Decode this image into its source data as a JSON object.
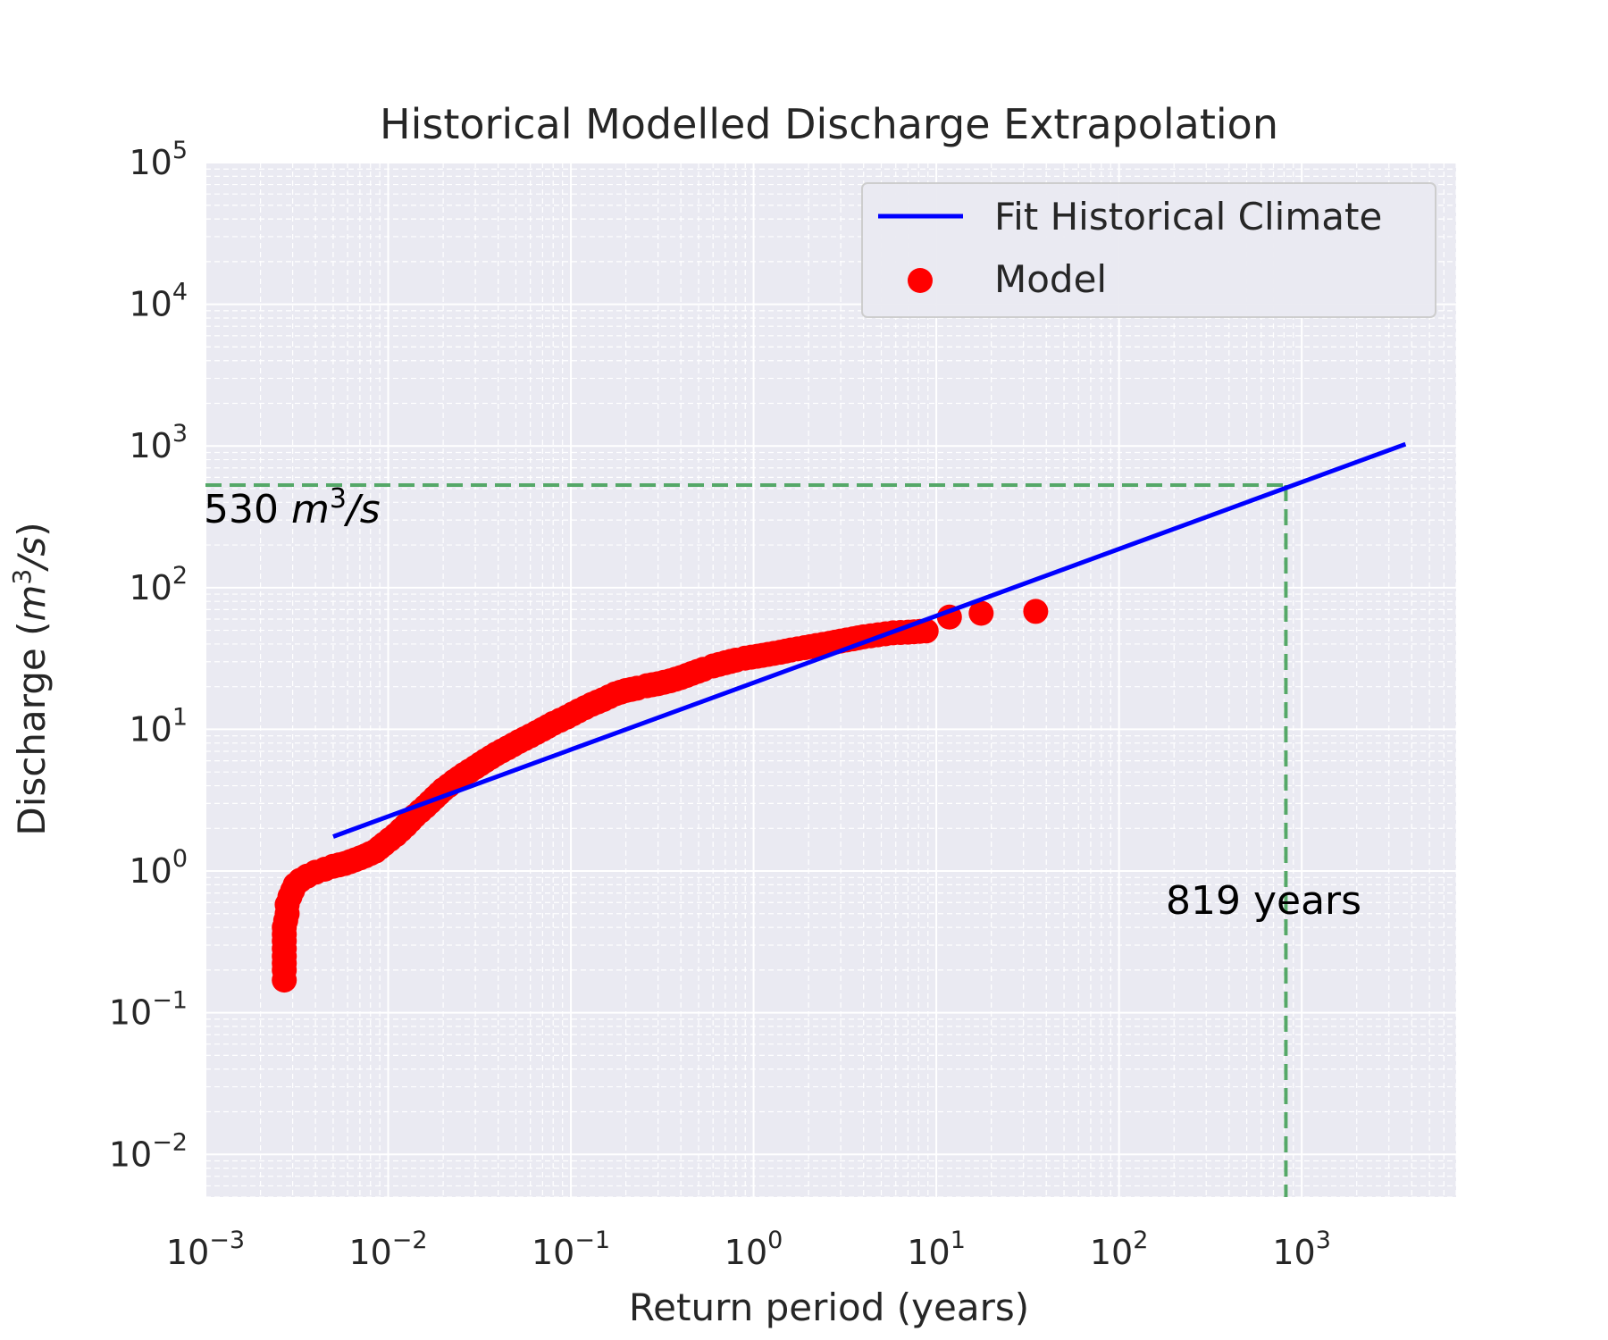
{
  "chart_data": {
    "type": "scatter",
    "title": "Historical Modelled Discharge Extrapolation",
    "xlabel": "Return period (years)",
    "ylabel_main": "Discharge (",
    "ylabel_m": "m",
    "ylabel_sup": "3",
    "ylabel_s": "/s",
    "ylabel_close": ")",
    "xscale": "log",
    "yscale": "log",
    "xlim": [
      0.001,
      7000
    ],
    "ylim": [
      0.005,
      100000
    ],
    "grid": true,
    "legend_position": "top-right",
    "x_ticks": [
      {
        "base": "10",
        "exp": "−3",
        "value": 0.001
      },
      {
        "base": "10",
        "exp": "−2",
        "value": 0.01
      },
      {
        "base": "10",
        "exp": "−1",
        "value": 0.1
      },
      {
        "base": "10",
        "exp": "0",
        "value": 1
      },
      {
        "base": "10",
        "exp": "1",
        "value": 10
      },
      {
        "base": "10",
        "exp": "2",
        "value": 100
      },
      {
        "base": "10",
        "exp": "3",
        "value": 1000
      }
    ],
    "y_ticks": [
      {
        "base": "10",
        "exp": "−2",
        "value": 0.01
      },
      {
        "base": "10",
        "exp": "−1",
        "value": 0.1
      },
      {
        "base": "10",
        "exp": "0",
        "value": 1
      },
      {
        "base": "10",
        "exp": "1",
        "value": 10
      },
      {
        "base": "10",
        "exp": "2",
        "value": 100
      },
      {
        "base": "10",
        "exp": "3",
        "value": 1000
      },
      {
        "base": "10",
        "exp": "4",
        "value": 10000
      },
      {
        "base": "10",
        "exp": "5",
        "value": 100000
      }
    ],
    "series": [
      {
        "name": "Fit Historical Climate",
        "kind": "line",
        "color": "#0000ff",
        "x": [
          0.005,
          3700
        ],
        "y": [
          1.75,
          1030
        ]
      },
      {
        "name": "Model",
        "kind": "scatter",
        "color": "#ff0000",
        "x": [
          0.0027,
          0.0027,
          0.0027,
          0.0027,
          0.0027,
          0.0028,
          0.0028,
          0.0029,
          0.003,
          0.0031,
          0.0033,
          0.0036,
          0.004,
          0.0045,
          0.005,
          0.0058,
          0.0066,
          0.0075,
          0.0085,
          0.0095,
          0.011,
          0.0125,
          0.014,
          0.016,
          0.018,
          0.02,
          0.023,
          0.026,
          0.03,
          0.034,
          0.039,
          0.045,
          0.052,
          0.06,
          0.07,
          0.08,
          0.095,
          0.11,
          0.13,
          0.15,
          0.175,
          0.2,
          0.23,
          0.26,
          0.3,
          0.35,
          0.4,
          0.46,
          0.53,
          0.6,
          0.7,
          0.8,
          0.9,
          1.05,
          1.2,
          1.4,
          1.6,
          1.9,
          2.2,
          2.6,
          3.0,
          3.5,
          4.0,
          4.8,
          5.8,
          7.0,
          8.8,
          11.8,
          17.6,
          35.0
        ],
        "y": [
          0.17,
          0.2,
          0.25,
          0.32,
          0.4,
          0.5,
          0.58,
          0.66,
          0.73,
          0.8,
          0.86,
          0.92,
          0.98,
          1.03,
          1.08,
          1.13,
          1.2,
          1.28,
          1.38,
          1.55,
          1.8,
          2.1,
          2.45,
          2.85,
          3.3,
          3.75,
          4.3,
          4.8,
          5.4,
          6.0,
          6.7,
          7.4,
          8.2,
          9.0,
          10.0,
          11.0,
          12.2,
          13.5,
          15.0,
          16.2,
          17.8,
          18.8,
          19.5,
          20.3,
          21.0,
          22.0,
          23.2,
          24.8,
          26.5,
          28.0,
          29.5,
          30.8,
          31.8,
          32.8,
          33.8,
          35.0,
          36.3,
          37.7,
          39.0,
          40.5,
          42.0,
          43.5,
          45.0,
          46.5,
          48.0,
          48.5,
          49.5,
          62.0,
          66.0,
          68.0
        ]
      }
    ],
    "annotations": {
      "hline_value": 530,
      "vline_value": 819,
      "line_color": "#55a868",
      "hline_label_num": "530 ",
      "hline_label_m": "m",
      "hline_label_sup": "3",
      "hline_label_s": "/s",
      "vline_label": "819 years"
    },
    "colors": {
      "axes_bg": "#eaeaf2",
      "grid": "#ffffff",
      "legend_bg": "#eaeaf2",
      "legend_border": "#cccccc"
    }
  }
}
